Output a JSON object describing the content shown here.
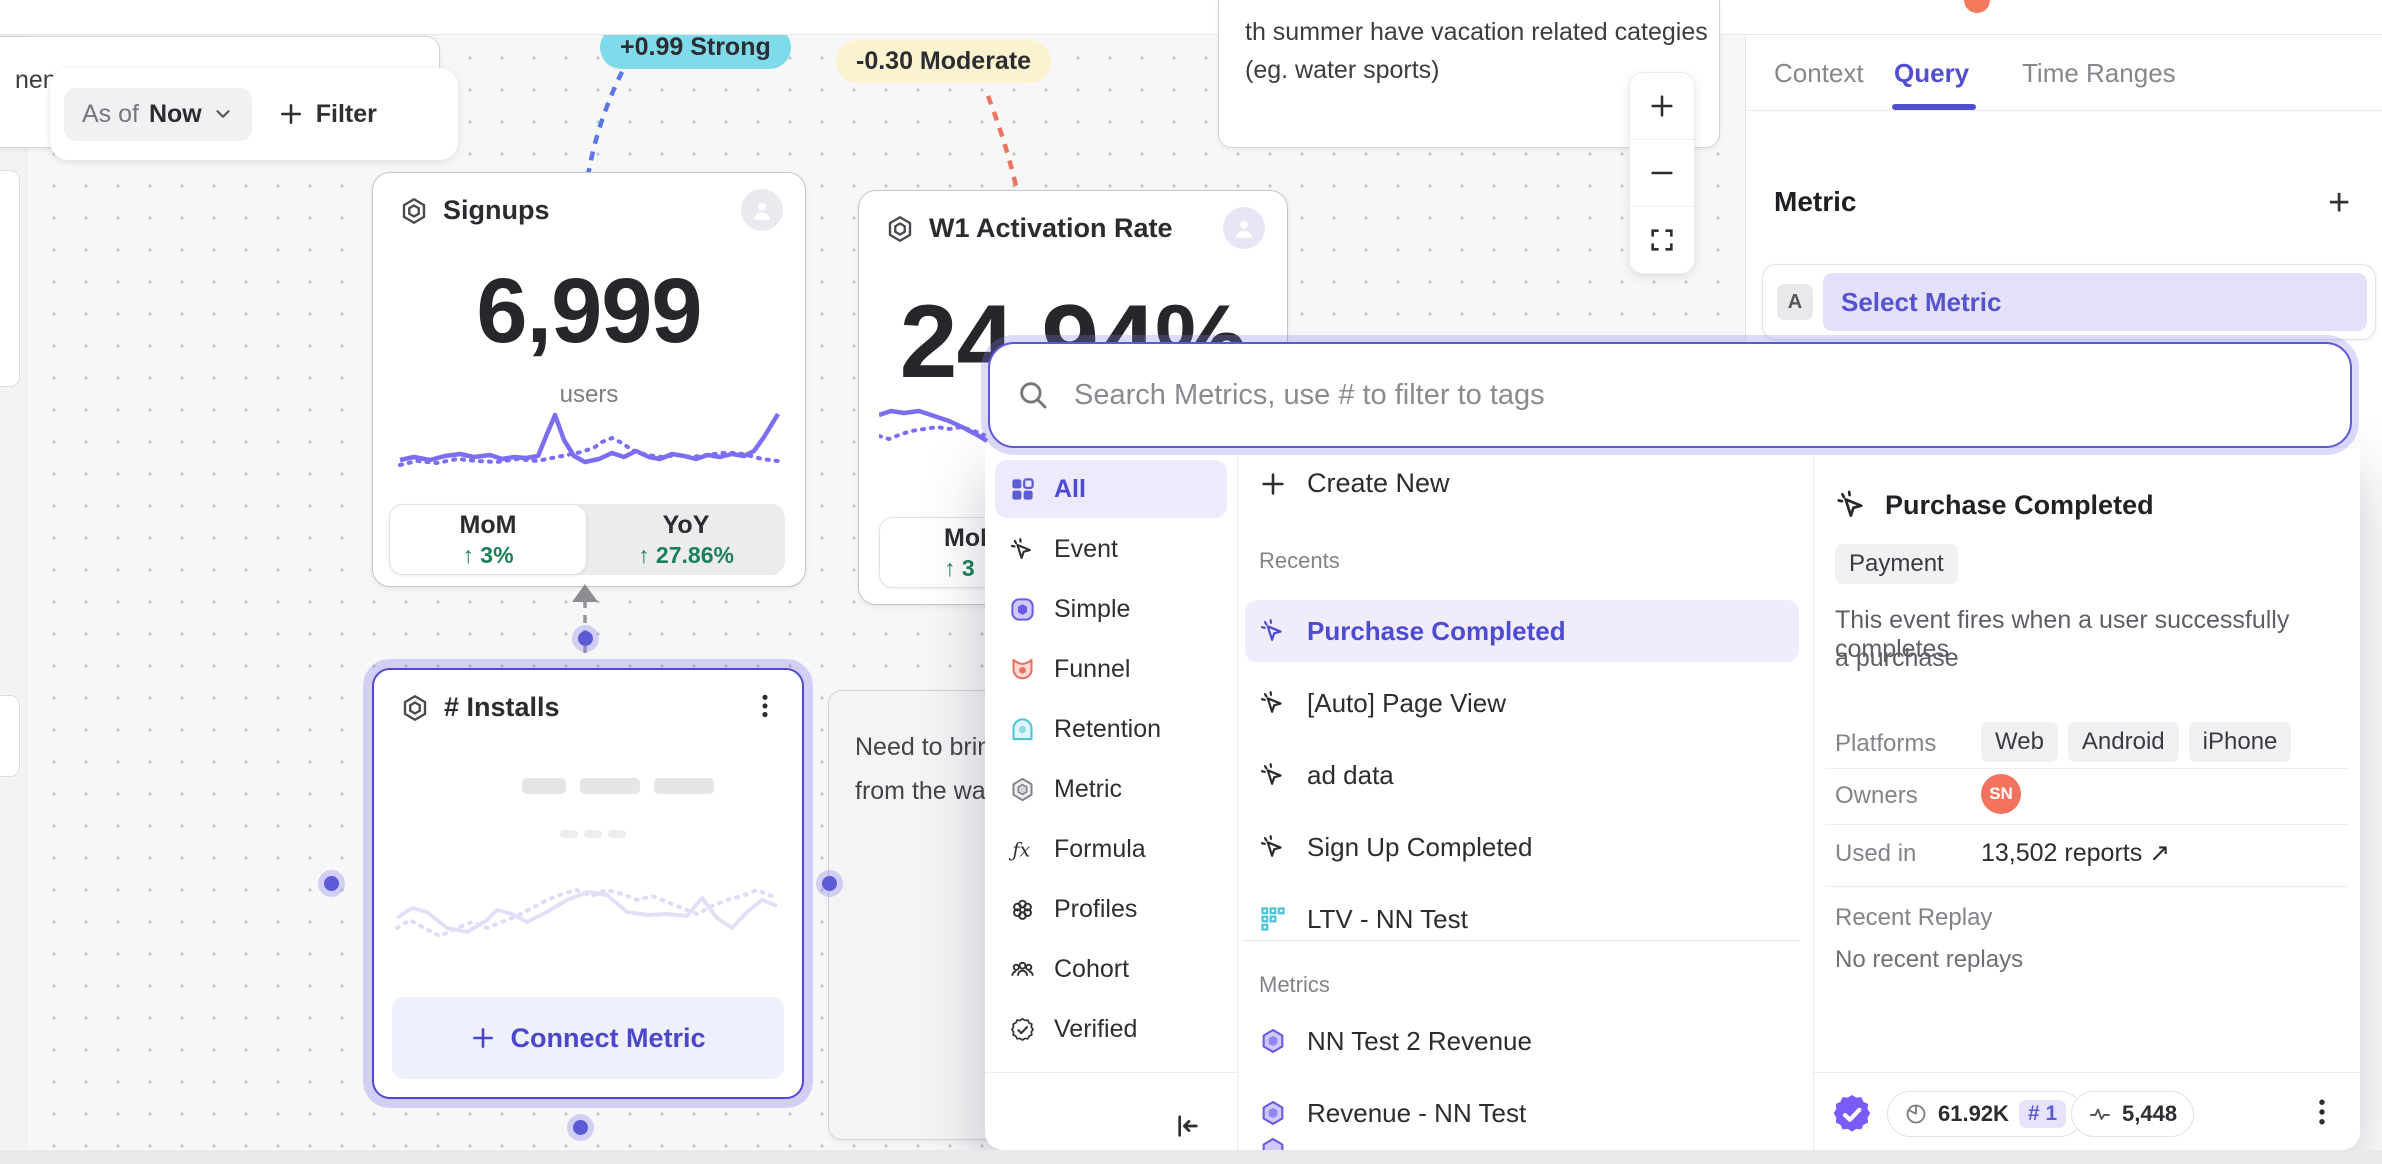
{
  "canvas": {
    "note_left_text": "nent  (eg. Electronics)",
    "note_summer_line1": "th summer have vacation related categies",
    "note_summer_line2": "(eg. water sports)",
    "note_need_line1": "Need to brin",
    "note_need_line2": "from the wa",
    "toolbar": {
      "as_of_label": "As of",
      "as_of_value": "Now",
      "filter_label": "Filter"
    },
    "badges": {
      "strong": "+0.99 Strong",
      "moderate": "-0.30 Moderate"
    },
    "cards": {
      "signups": {
        "title": "Signups",
        "value": "6,999",
        "unit": "users",
        "seg_left_label": "MoM",
        "seg_left_value": "↑ 3%",
        "seg_right_label": "YoY",
        "seg_right_value": "↑ 27.86%"
      },
      "activation": {
        "title": "W1 Activation Rate",
        "value": "24.94%",
        "seg_left_label": "MoM",
        "seg_left_value": "↑ 3"
      },
      "installs": {
        "title": "# Installs",
        "connect_label": "Connect Metric"
      }
    }
  },
  "panel": {
    "tabs": [
      {
        "label": "Context"
      },
      {
        "label": "Query"
      },
      {
        "label": "Time Ranges"
      }
    ],
    "active_tab": "Query",
    "metric_heading": "Metric",
    "add_label": "+",
    "slot_letter": "A",
    "slot_placeholder": "Select Metric"
  },
  "modal": {
    "search_placeholder": "Search Metrics, use # to filter to tags",
    "create_new_label": "Create New",
    "categories": [
      {
        "label": "All",
        "icon": "grid-all-icon",
        "selected": true
      },
      {
        "label": "Event",
        "icon": "event-cursor-icon"
      },
      {
        "label": "Simple",
        "icon": "simple-metric-icon"
      },
      {
        "label": "Funnel",
        "icon": "funnel-icon"
      },
      {
        "label": "Retention",
        "icon": "retention-icon"
      },
      {
        "label": "Metric",
        "icon": "metric-hexagon-icon"
      },
      {
        "label": "Formula",
        "icon": "formula-icon"
      },
      {
        "label": "Profiles",
        "icon": "profiles-icon"
      },
      {
        "label": "Cohort",
        "icon": "cohort-icon"
      },
      {
        "label": "Verified",
        "icon": "verified-icon"
      }
    ],
    "sections": {
      "recents_label": "Recents",
      "metrics_label": "Metrics",
      "recents": [
        {
          "label": "Purchase Completed",
          "icon": "event-cursor-icon",
          "selected": true
        },
        {
          "label": "[Auto] Page View",
          "icon": "event-cursor-icon"
        },
        {
          "label": "ad data",
          "icon": "event-cursor-icon"
        },
        {
          "label": "Sign Up Completed",
          "icon": "event-cursor-icon"
        },
        {
          "label": "LTV - NN Test",
          "icon": "ltv-grid-icon"
        }
      ],
      "metrics": [
        {
          "label": "NN Test 2 Revenue",
          "icon": "metric-purple-hexagon-icon"
        },
        {
          "label": "Revenue - NN Test",
          "icon": "metric-purple-hexagon-icon"
        }
      ]
    },
    "detail": {
      "title": "Purchase Completed",
      "tag": "Payment",
      "description_line1": "This event fires when a user successfully completes",
      "description_line2": "a purchase",
      "platforms_label": "Platforms",
      "platforms": [
        "Web",
        "Android",
        "iPhone"
      ],
      "owners_label": "Owners",
      "owner_initials": "SN",
      "used_in_label": "Used in",
      "used_in_value": "13,502 reports ↗",
      "recent_replay_label": "Recent Replay",
      "recent_replay_value": "No recent replays"
    },
    "footer": {
      "usage": "61.92K",
      "rank": "# 1",
      "count": "5,448"
    }
  },
  "colors": {
    "accent_purple": "#5b5bd6",
    "green": "#1b7f57",
    "cyan_badge": "#7fdbe9",
    "yellow_badge": "#fbf3cf",
    "coral": "#f2735e",
    "blue_dash": "#5b76e6",
    "red_dash": "#ef7460"
  },
  "chart_data": [
    {
      "type": "line",
      "title": "Signups sparkline (current vs previous period)",
      "note": "unlabeled sparkline, normalized px coords",
      "summary_value": 6999,
      "series": [
        {
          "name": "current",
          "style": "solid"
        },
        {
          "name": "previous",
          "style": "dotted"
        }
      ]
    },
    {
      "type": "line",
      "title": "W1 Activation Rate sparkline",
      "summary_value": "24.94%",
      "series": [
        {
          "name": "current",
          "style": "solid"
        },
        {
          "name": "previous",
          "style": "dotted"
        }
      ]
    },
    {
      "type": "line",
      "title": "# Installs placeholder sparkline",
      "summary_value": null,
      "series": [
        {
          "name": "ghost-current",
          "style": "solid"
        },
        {
          "name": "ghost-previous",
          "style": "dotted"
        }
      ]
    }
  ],
  "charts": {
    "signups_solid": "3,65 17,62 33,65 48,61 63,59 77,62 93,60 105,64 117,62 129,63 141,61 150,39 158,20 167,45 177,61 188,67 202,64 215,58 227,62 239,56 252,62 263,64 275,59 287,61 299,64 311,60 323,62 335,59 347,61 357,56 367,42 381,19",
    "signups_dotted": "3,70 20,66 40,68 60,64 80,66 100,67 120,64 140,66 155,63 170,60 185,57 198,52 205,47 215,43 225,48 235,55 250,60 265,62 280,60 295,62 310,60 325,58 340,58 350,60 365,64 381,66",
    "w1_solid": "0,12 12,8 25,10 40,8 55,13 70,18 85,25 100,33 108,38",
    "w1_dotted": "0,33 10,36 20,32 32,28 45,26 58,24 70,26 82,24 95,28 105,32",
    "installs_solid": "5,48 20,38 35,42 55,58 75,62 95,50 105,40 120,44 135,52 155,42 175,30 195,22 215,25 235,42 255,45 275,44 295,46 310,28 325,48 340,58 355,42 370,30 385,36",
    "installs_dotted": "5,58 18,50 32,58 48,66 65,58 80,52 95,58 110,52 125,46 140,38 155,30 170,24 185,20 200,26 215,20 230,24 245,30 260,26 275,32 290,38 305,44 320,36 335,30 350,26 365,20 380,26"
  }
}
